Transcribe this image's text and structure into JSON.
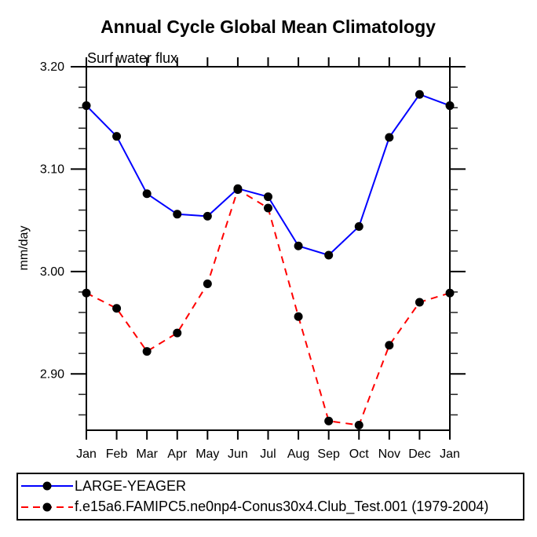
{
  "chart_data": {
    "type": "line",
    "title": "Annual Cycle Global Mean Climatology",
    "subtitle": "Surf water flux",
    "xlabel": "",
    "ylabel": "mm/day",
    "categories": [
      "Jan",
      "Feb",
      "Mar",
      "Apr",
      "May",
      "Jun",
      "Jul",
      "Aug",
      "Sep",
      "Oct",
      "Nov",
      "Dec",
      "Jan"
    ],
    "series": [
      {
        "name": "LARGE-YEAGER",
        "color": "#0000ff",
        "line_style": "solid",
        "marker": "black-dot",
        "values": [
          3.162,
          3.132,
          3.076,
          3.056,
          3.054,
          3.081,
          3.073,
          3.025,
          3.016,
          3.044,
          3.131,
          3.173,
          3.162
        ]
      },
      {
        "name": "f.e15a6.FAMIPC5.ne0np4-Conus30x4.Club_Test.001 (1979-2004)",
        "color": "#ff0000",
        "line_style": "dashed",
        "marker": "black-dot",
        "values": [
          2.979,
          2.964,
          2.922,
          2.94,
          2.988,
          3.08,
          3.062,
          2.956,
          2.854,
          2.85,
          2.928,
          2.97,
          2.979
        ]
      }
    ],
    "ylim": [
      2.845,
      3.2
    ],
    "ytick_values": [
      2.9,
      3.0,
      3.1,
      3.2
    ],
    "ytick_labels": [
      "2.90",
      "3.00",
      "3.10",
      "3.20"
    ],
    "minor_ytick_step": 0.02,
    "grid": false,
    "legend_position": "bottom-left-box",
    "marker_color": "#000000",
    "frame_color": "#000000"
  }
}
